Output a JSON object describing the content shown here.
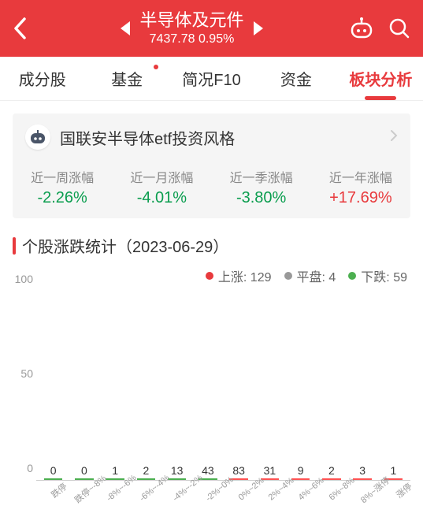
{
  "header": {
    "title": "半导体及元件",
    "price": "7437.78",
    "change": "0.95%"
  },
  "tabs": [
    {
      "label": "成分股",
      "active": false,
      "dot": false
    },
    {
      "label": "基金",
      "active": false,
      "dot": true
    },
    {
      "label": "简况F10",
      "active": false,
      "dot": false
    },
    {
      "label": "资金",
      "active": false,
      "dot": false
    },
    {
      "label": "板块分析",
      "active": true,
      "dot": false
    }
  ],
  "panel": {
    "title": "国联安半导体etf投资风格",
    "metrics": [
      {
        "label": "近一周涨幅",
        "value": "-2.26%",
        "color": "#0a9d4e"
      },
      {
        "label": "近一月涨幅",
        "value": "-4.01%",
        "color": "#0a9d4e"
      },
      {
        "label": "近一季涨幅",
        "value": "-3.80%",
        "color": "#0a9d4e"
      },
      {
        "label": "近一年涨幅",
        "value": "+17.69%",
        "color": "#e83a3d"
      }
    ]
  },
  "section": {
    "title": "个股涨跌统计（2023-06-29）"
  },
  "legend": [
    {
      "label": "上涨: 129",
      "color": "#e83a3d"
    },
    {
      "label": "平盘: 4",
      "color": "#999999"
    },
    {
      "label": "下跌: 59",
      "color": "#4caf50"
    }
  ],
  "chart": {
    "type": "bar",
    "ylim": [
      0,
      100
    ],
    "yticks": [
      0,
      50,
      100
    ],
    "ytick_step": 50,
    "background_color": "#ffffff",
    "axis_color": "#cccccc",
    "label_fontsize": 11,
    "value_fontsize": 14,
    "bar_width": 0.6,
    "categories": [
      "跌停",
      "跌停~-8%",
      "-8%~-6%",
      "-6%~-4%",
      "-4%~-2%",
      "-2%~0%",
      "0%~2%",
      "2%~4%",
      "4%~6%",
      "6%~8%",
      "8%~涨停",
      "涨停"
    ],
    "values": [
      0,
      0,
      1,
      2,
      13,
      43,
      83,
      31,
      9,
      2,
      3,
      1
    ],
    "bar_colors": [
      "#4caf50",
      "#4caf50",
      "#4caf50",
      "#4caf50",
      "#4caf50",
      "#4caf50",
      "#ff5252",
      "#ff5252",
      "#ff5252",
      "#ff5252",
      "#ff5252",
      "#ff5252"
    ]
  }
}
